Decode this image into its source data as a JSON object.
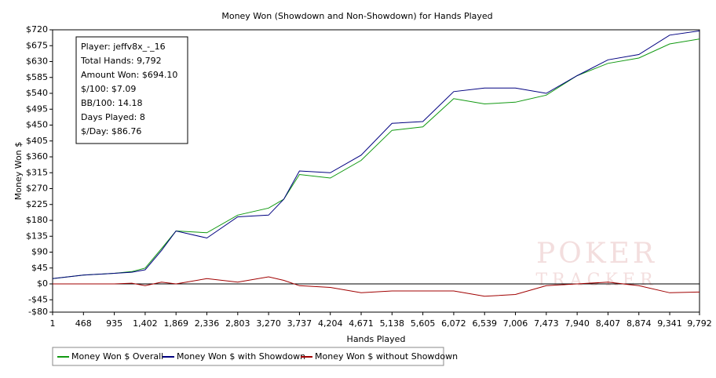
{
  "chart_data": {
    "type": "line",
    "title": "Money Won (Showdown and Non-Showdown) for Hands Played",
    "x_label": "Hands Played",
    "y_label": "Money Won $",
    "xlim": [
      1,
      9792
    ],
    "xticks": [
      1,
      468,
      935,
      {
        "value": 1402,
        "label": "1,402"
      },
      {
        "value": 1869,
        "label": "1,869"
      },
      {
        "value": 2336,
        "label": "2,336"
      },
      {
        "value": 2803,
        "label": "2,803"
      },
      {
        "value": 3270,
        "label": "3,270"
      },
      {
        "value": 3737,
        "label": "3,737"
      },
      {
        "value": 4204,
        "label": "4,204"
      },
      {
        "value": 4671,
        "label": "4,671"
      },
      {
        "value": 5138,
        "label": "5,138"
      },
      {
        "value": 5605,
        "label": "5,605"
      },
      {
        "value": 6072,
        "label": "6,072"
      },
      {
        "value": 6539,
        "label": "6,539"
      },
      {
        "value": 7006,
        "label": "7,006"
      },
      {
        "value": 7473,
        "label": "7,473"
      },
      {
        "value": 7940,
        "label": "7,940"
      },
      {
        "value": 8407,
        "label": "8,407"
      },
      {
        "value": 8874,
        "label": "8,874"
      },
      {
        "value": 9341,
        "label": "9,341"
      },
      {
        "value": 9792,
        "label": "9,792"
      }
    ],
    "ylim": [
      -80,
      720
    ],
    "yticks": [
      {
        "value": -80,
        "label": "-$80"
      },
      {
        "value": -45,
        "label": "-$45"
      },
      {
        "value": 0,
        "label": "$0"
      },
      {
        "value": 45,
        "label": "$45"
      },
      {
        "value": 90,
        "label": "$90"
      },
      {
        "value": 135,
        "label": "$135"
      },
      {
        "value": 180,
        "label": "$180"
      },
      {
        "value": 225,
        "label": "$225"
      },
      {
        "value": 270,
        "label": "$270"
      },
      {
        "value": 315,
        "label": "$315"
      },
      {
        "value": 360,
        "label": "$360"
      },
      {
        "value": 405,
        "label": "$405"
      },
      {
        "value": 450,
        "label": "$450"
      },
      {
        "value": 495,
        "label": "$495"
      },
      {
        "value": 540,
        "label": "$540"
      },
      {
        "value": 585,
        "label": "$585"
      },
      {
        "value": 630,
        "label": "$630"
      },
      {
        "value": 675,
        "label": "$675"
      },
      {
        "value": 720,
        "label": "$720"
      }
    ],
    "x": [
      1,
      468,
      935,
      1200,
      1402,
      1650,
      1869,
      2336,
      2803,
      3270,
      3500,
      3737,
      4204,
      4671,
      5138,
      5605,
      6072,
      6539,
      7006,
      7473,
      7940,
      8407,
      8874,
      9341,
      9792
    ],
    "series": [
      {
        "name": "Money Won $ Overall",
        "color": "#119911",
        "values": [
          15,
          25,
          30,
          35,
          45,
          100,
          150,
          145,
          195,
          215,
          240,
          310,
          300,
          350,
          435,
          445,
          525,
          510,
          515,
          535,
          590,
          625,
          640,
          680,
          694
        ]
      },
      {
        "name": "Money Won $ with Showdown",
        "color": "#000080",
        "values": [
          15,
          25,
          30,
          33,
          40,
          95,
          150,
          130,
          190,
          195,
          240,
          320,
          315,
          365,
          455,
          460,
          545,
          555,
          555,
          540,
          590,
          635,
          650,
          705,
          717
        ]
      },
      {
        "name": "Money Won $ without Showdown",
        "color": "#a00000",
        "values": [
          0,
          0,
          0,
          2,
          -5,
          5,
          0,
          15,
          5,
          20,
          10,
          -5,
          -10,
          -25,
          -20,
          -20,
          -20,
          -35,
          -30,
          -5,
          0,
          5,
          -5,
          -25,
          -23
        ]
      }
    ],
    "info_box": [
      "Player: jeffv8x_-_16",
      "Total Hands: 9,792",
      "Amount Won: $694.10",
      "$/100: $7.09",
      "BB/100: 14.18",
      "Days Played: 8",
      "$/Day: $86.76"
    ],
    "watermark": [
      "POKER",
      "TRACKER"
    ],
    "legend": "bottom"
  }
}
